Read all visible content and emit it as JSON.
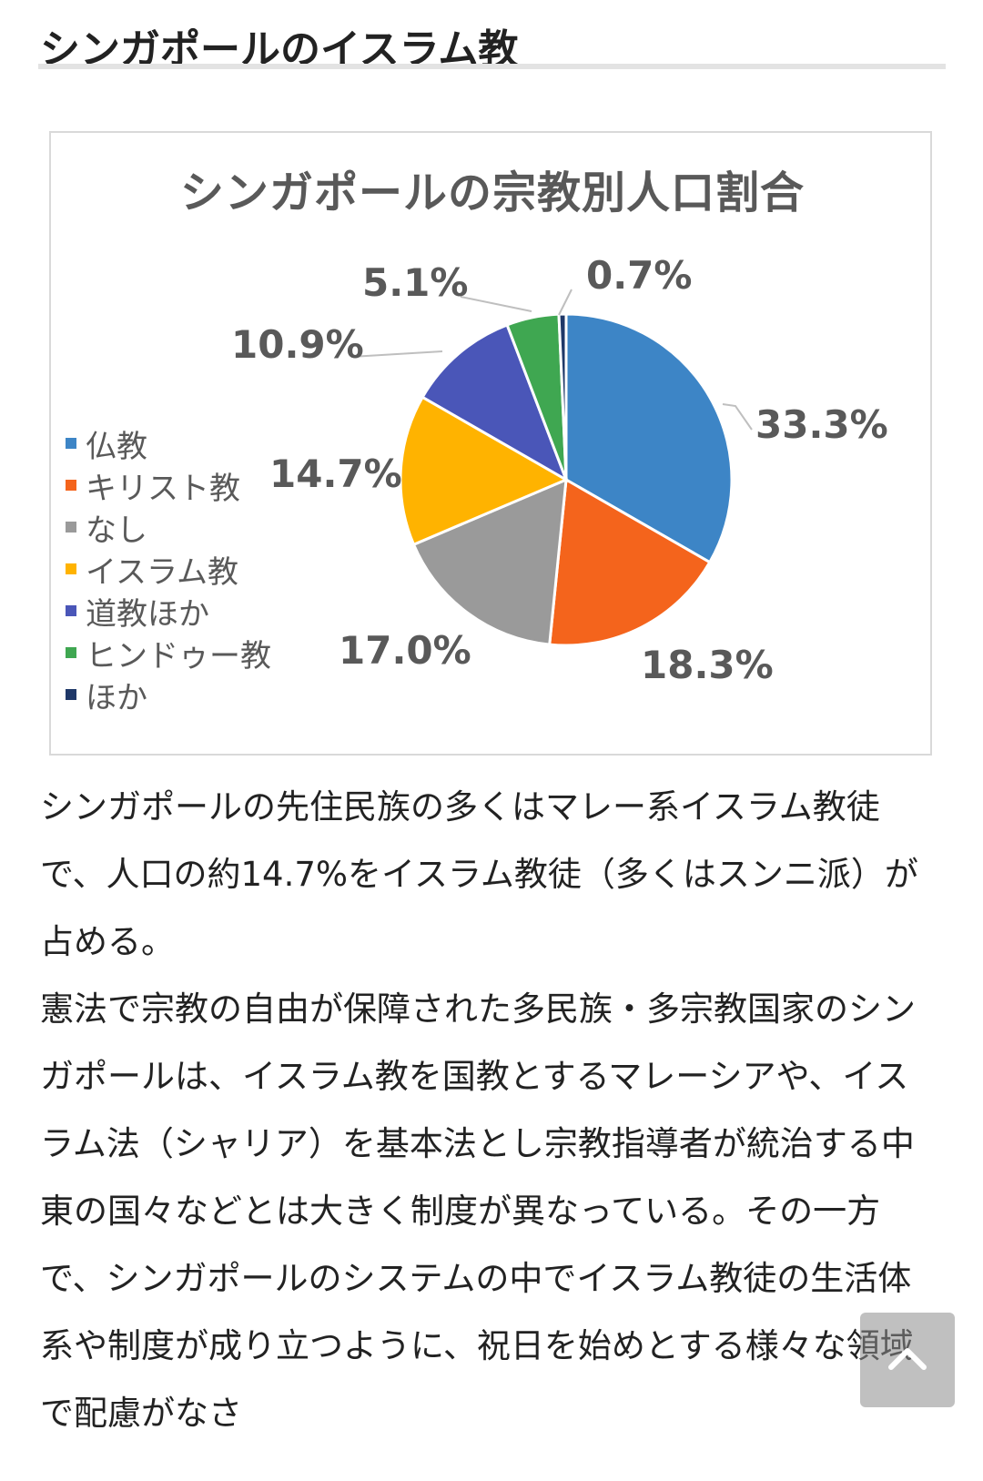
{
  "heading": "シンガポールのイスラム教",
  "chart_data": {
    "type": "pie",
    "title": "シンガポールの宗教別人口割合",
    "slices": [
      {
        "name": "仏教",
        "value": 33.3,
        "label": "33.3%",
        "color": "#3d85c6"
      },
      {
        "name": "キリスト教",
        "value": 18.3,
        "label": "18.3%",
        "color": "#f4641c"
      },
      {
        "name": "なし",
        "value": 17.0,
        "label": "17.0%",
        "color": "#9a9a9a"
      },
      {
        "name": "イスラム教",
        "value": 14.7,
        "label": "14.7%",
        "color": "#ffb300"
      },
      {
        "name": "道教ほか",
        "value": 10.9,
        "label": "10.9%",
        "color": "#4a56b8"
      },
      {
        "name": "ヒンドゥー教",
        "value": 5.1,
        "label": "5.1%",
        "color": "#3fa751"
      },
      {
        "name": "ほか",
        "value": 0.7,
        "label": "0.7%",
        "color": "#1f3868"
      }
    ],
    "legend_position": "left"
  },
  "article": {
    "para1": "シンガポールの先住民族の多くはマレー系イスラム教徒で、人口の約14.7%をイスラム教徒（多くはスンニ派）が占める。",
    "para2": "憲法で宗教の自由が保障された多民族・多宗教国家のシンガポールは、イスラム教を国教とするマレーシアや、イスラム法（シャリア）を基本法とし宗教指導者が統治する中東の国々などとは大きく制度が異なっている。その一方で、シンガポールのシステムの中でイスラム教徒の生活体系や制度が成り立つように、祝日を始めとする様々な領域で配慮がなさ"
  },
  "scroll_top_icon": "chevron-up-icon"
}
